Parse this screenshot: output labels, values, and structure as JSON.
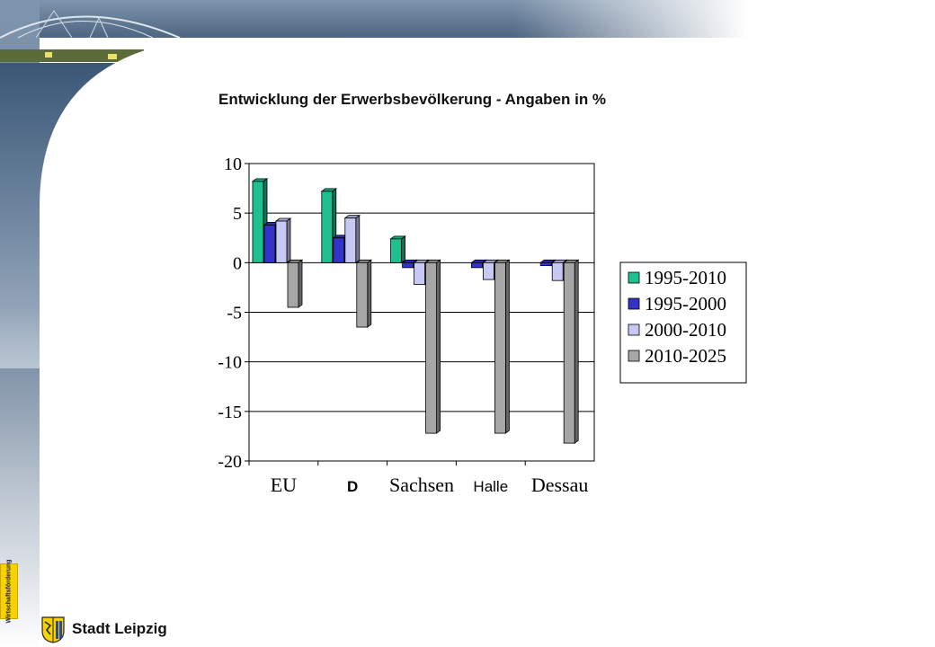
{
  "slide": {
    "title": "Entwicklung der Erwerbsbevölkerung - Angaben in %"
  },
  "branding": {
    "badge_text": "Wirtschaftsförderung",
    "city": "Stadt Leipzig",
    "logo_icon": "leipzig-coat-of-arms-icon"
  },
  "colors": {
    "series": [
      "#1fbf8f",
      "#3333c8",
      "#c8c8f5",
      "#a6a6a6"
    ],
    "badge": "#f6d300"
  },
  "chart_data": {
    "type": "bar",
    "categories": [
      "EU",
      "D",
      "Sachsen",
      "Halle",
      "Dessau"
    ],
    "series": [
      {
        "name": "1995-2010",
        "values": [
          8.2,
          7.2,
          2.4,
          0,
          0
        ]
      },
      {
        "name": "1995-2000",
        "values": [
          3.8,
          2.5,
          -0.5,
          -0.5,
          -0.3
        ]
      },
      {
        "name": "2000-2010",
        "values": [
          4.2,
          4.5,
          -2.2,
          -1.7,
          -1.8
        ]
      },
      {
        "name": "2010-2025",
        "values": [
          -4.5,
          -6.5,
          -17.2,
          -17.2,
          -18.2
        ]
      }
    ],
    "ylim": [
      -20,
      10
    ],
    "yticks": [
      10,
      5,
      0,
      -5,
      -10,
      -15,
      -20
    ],
    "grid": true,
    "legend": "right",
    "title": "",
    "xlabel": "",
    "ylabel": ""
  }
}
